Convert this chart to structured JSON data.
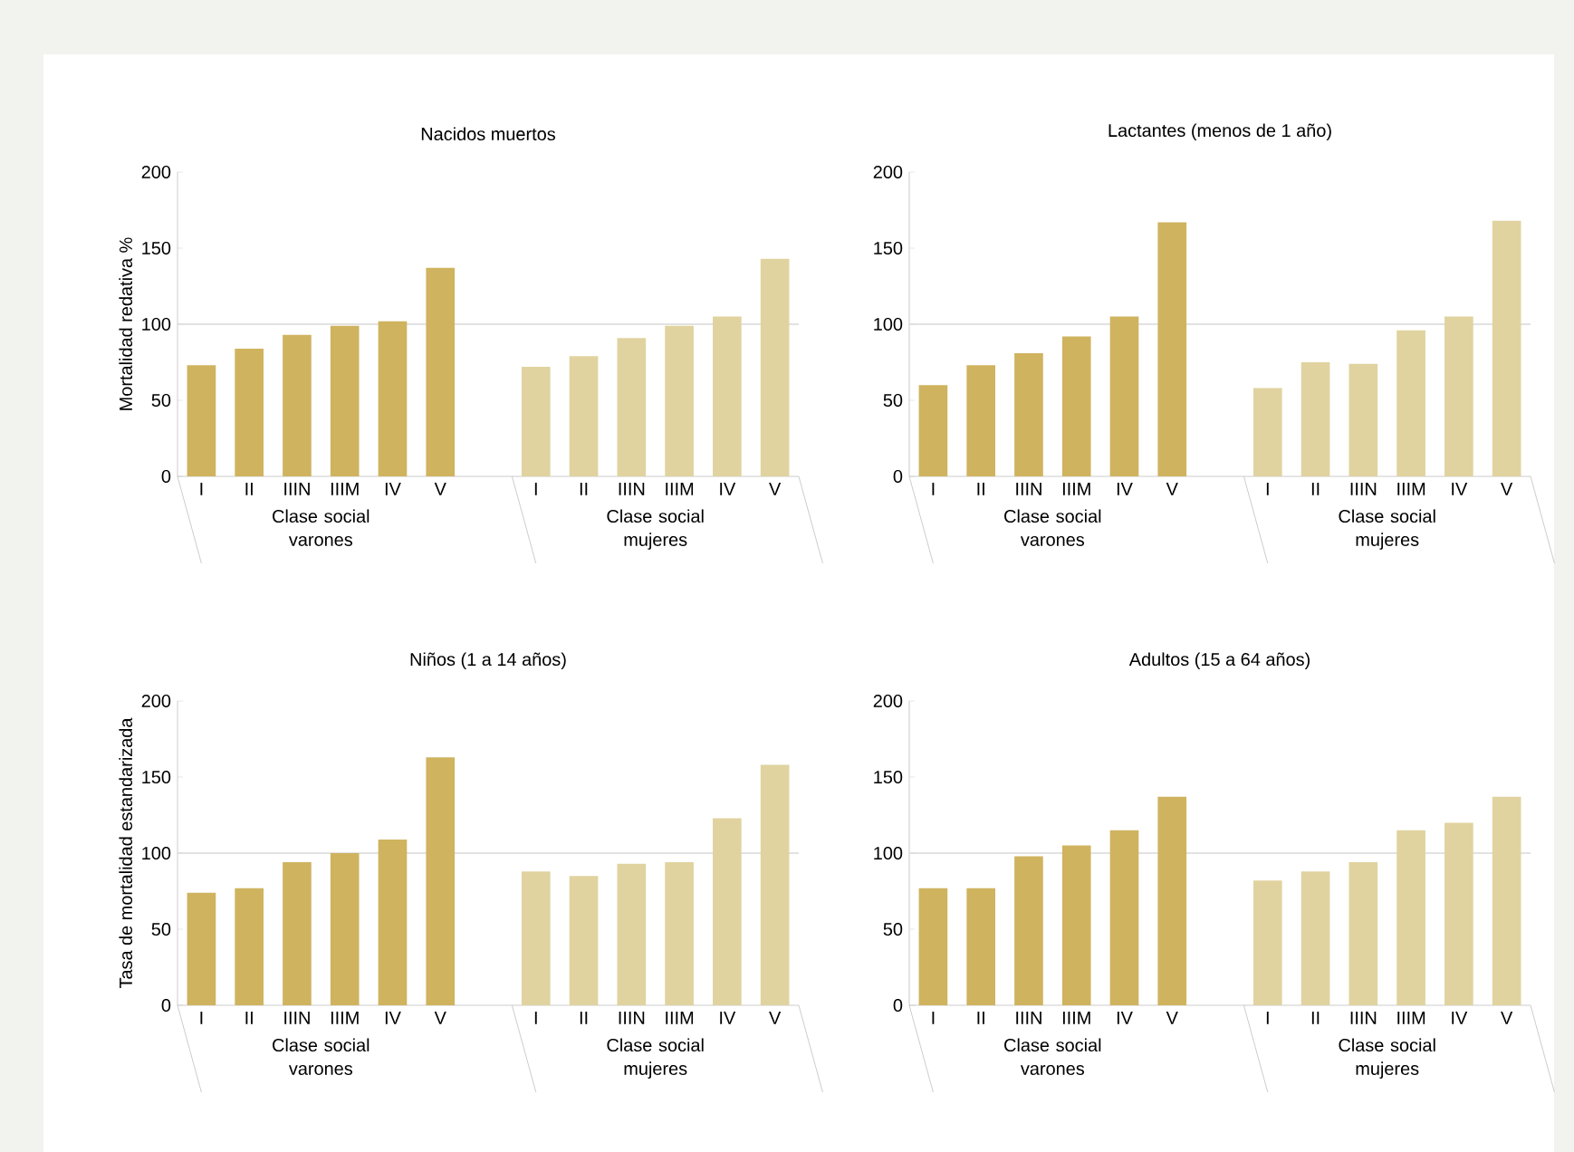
{
  "chart_data": [
    {
      "type": "bar",
      "title": "Nacidos muertos",
      "ylabel": "Mortalidad redativa %",
      "categories": [
        "I",
        "II",
        "IIIN",
        "IIIM",
        "IV",
        "V",
        null,
        "I",
        "II",
        "IIIN",
        "IIIM",
        "IV",
        "V"
      ],
      "ylim": [
        0,
        200
      ],
      "yticks": [
        0,
        50,
        100,
        150,
        200
      ],
      "ref_lines": [
        {
          "axis": "y",
          "value": 100,
          "color": "#d9d9d9"
        }
      ],
      "series": [
        {
          "name": "Clase social varones",
          "color": "#cfb35f",
          "values": [
            73,
            84,
            93,
            99,
            102,
            137,
            null,
            null,
            null,
            null,
            null,
            null,
            null
          ]
        },
        {
          "name": "Clase social mujeres",
          "color": "#e0d39f",
          "values": [
            null,
            null,
            null,
            null,
            null,
            null,
            null,
            72,
            79,
            91,
            99,
            105,
            143
          ]
        }
      ]
    },
    {
      "type": "bar",
      "title": "Lactantes (menos de 1 año)",
      "categories": [
        "I",
        "II",
        "IIIN",
        "IIIM",
        "IV",
        "V",
        null,
        "I",
        "II",
        "IIIN",
        "IIIM",
        "IV",
        "V"
      ],
      "ylim": [
        0,
        200
      ],
      "yticks": [
        0,
        50,
        100,
        150,
        200
      ],
      "ref_lines": [
        {
          "axis": "y",
          "value": 100,
          "color": "#d9d9d9"
        }
      ],
      "series": [
        {
          "name": "Clase social varones",
          "color": "#cfb35f",
          "values": [
            60,
            73,
            81,
            92,
            105,
            167,
            null,
            null,
            null,
            null,
            null,
            null,
            null
          ]
        },
        {
          "name": "Clase social mujeres",
          "color": "#e0d39f",
          "values": [
            null,
            null,
            null,
            null,
            null,
            null,
            null,
            58,
            75,
            74,
            96,
            105,
            168
          ]
        }
      ]
    },
    {
      "type": "bar",
      "title": "Niños (1 a 14 años)",
      "ylabel": "Tasa de mortalidad estandarizada",
      "categories": [
        "I",
        "II",
        "IIIN",
        "IIIM",
        "IV",
        "V",
        null,
        "I",
        "II",
        "IIIN",
        "IIIM",
        "IV",
        "V"
      ],
      "ylim": [
        0,
        200
      ],
      "yticks": [
        0,
        50,
        100,
        150,
        200
      ],
      "ref_lines": [
        {
          "axis": "y",
          "value": 100,
          "color": "#d9d9d9"
        }
      ],
      "series": [
        {
          "name": "Clase social varones",
          "color": "#cfb35f",
          "values": [
            74,
            77,
            94,
            100,
            109,
            163,
            null,
            null,
            null,
            null,
            null,
            null,
            null
          ]
        },
        {
          "name": "Clase social mujeres",
          "color": "#e0d39f",
          "values": [
            null,
            null,
            null,
            null,
            null,
            null,
            null,
            88,
            85,
            93,
            94,
            123,
            158
          ]
        }
      ]
    },
    {
      "type": "bar",
      "title": "Adultos (15 a 64 años)",
      "categories": [
        "I",
        "II",
        "IIIN",
        "IIIM",
        "IV",
        "V",
        null,
        "I",
        "II",
        "IIIN",
        "IIIM",
        "IV",
        "V"
      ],
      "ylim": [
        0,
        200
      ],
      "yticks": [
        0,
        50,
        100,
        150,
        200
      ],
      "ref_lines": [
        {
          "axis": "y",
          "value": 100,
          "color": "#d9d9d9"
        }
      ],
      "series": [
        {
          "name": "Clase social varones",
          "color": "#cfb35f",
          "values": [
            77,
            77,
            98,
            105,
            115,
            137,
            null,
            null,
            null,
            null,
            null,
            null,
            null
          ]
        },
        {
          "name": "Clase social mujeres",
          "color": "#e0d39f",
          "values": [
            null,
            null,
            null,
            null,
            null,
            null,
            null,
            82,
            88,
            94,
            115,
            120,
            137
          ]
        }
      ]
    }
  ]
}
